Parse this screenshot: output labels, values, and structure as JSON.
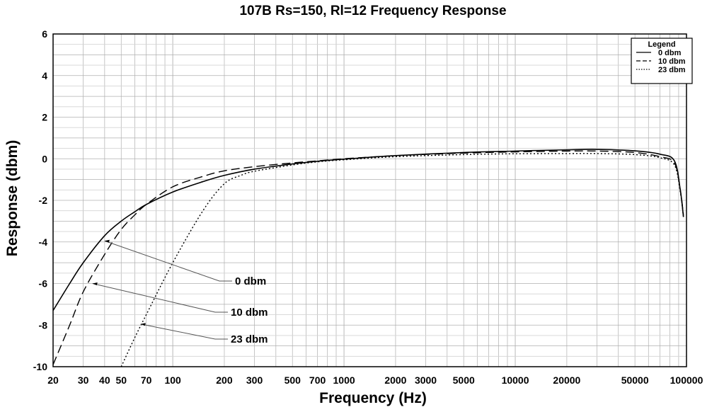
{
  "chart_data": {
    "type": "line",
    "title": "107B Rs=150, Rl=12 Frequency Response",
    "xlabel": "Frequency (Hz)",
    "ylabel": "Response (dbm)",
    "xscale": "log",
    "xlim": [
      20,
      100000
    ],
    "ylim": [
      -10,
      6
    ],
    "grid": true,
    "x_ticks": [
      20,
      30,
      40,
      50,
      70,
      100,
      200,
      300,
      500,
      700,
      1000,
      2000,
      3000,
      5000,
      10000,
      20000,
      50000,
      100000
    ],
    "x_tick_labels": [
      "20",
      "30",
      "40",
      "50",
      "70",
      "100",
      "200",
      "300",
      "500",
      "700",
      "1000",
      "2000",
      "3000",
      "5000",
      "10000",
      "20000",
      "50000",
      "100000"
    ],
    "y_ticks": [
      6,
      4,
      2,
      0,
      -2,
      -4,
      -6,
      -8,
      -10
    ],
    "y_tick_labels": [
      "6",
      "4",
      "2",
      "0",
      "-2",
      "-4",
      "-6",
      "-8",
      "-10"
    ],
    "legend": {
      "title": "Legend",
      "position": "top-right",
      "entries": [
        "0 dbm",
        "10 dbm",
        "23 dbm"
      ]
    },
    "series": [
      {
        "name": "0 dbm",
        "style": "solid",
        "x": [
          20,
          25,
          30,
          40,
          50,
          60,
          70,
          100,
          150,
          200,
          300,
          500,
          700,
          1000,
          2000,
          5000,
          10000,
          20000,
          30000,
          50000,
          70000,
          85000,
          92000,
          96000
        ],
        "y": [
          -7.3,
          -6.0,
          -5.0,
          -3.7,
          -3.0,
          -2.55,
          -2.2,
          -1.6,
          -1.1,
          -0.8,
          -0.5,
          -0.25,
          -0.12,
          -0.02,
          0.15,
          0.3,
          0.37,
          0.43,
          0.45,
          0.38,
          0.22,
          -0.1,
          -1.5,
          -2.8
        ]
      },
      {
        "name": "10 dbm",
        "style": "dashed",
        "x": [
          20,
          25,
          30,
          40,
          50,
          60,
          70,
          100,
          150,
          200,
          300,
          500,
          700,
          1000,
          2000,
          5000,
          10000,
          20000,
          30000,
          50000,
          70000,
          85000,
          92000,
          96000
        ],
        "y": [
          -9.9,
          -8.0,
          -6.4,
          -4.6,
          -3.4,
          -2.7,
          -2.2,
          -1.35,
          -0.85,
          -0.58,
          -0.38,
          -0.2,
          -0.1,
          0.0,
          0.15,
          0.27,
          0.33,
          0.37,
          0.37,
          0.3,
          0.1,
          -0.2,
          -1.5,
          -2.7
        ]
      },
      {
        "name": "23 dbm",
        "style": "dotted",
        "x": [
          50,
          60,
          70,
          100,
          150,
          200,
          250,
          300,
          500,
          700,
          1000,
          2000,
          5000,
          10000,
          20000,
          30000,
          50000,
          70000,
          85000,
          92000,
          96000
        ],
        "y": [
          -10.0,
          -8.6,
          -7.5,
          -5.0,
          -2.5,
          -1.2,
          -0.8,
          -0.6,
          -0.3,
          -0.15,
          -0.05,
          0.1,
          0.2,
          0.24,
          0.25,
          0.25,
          0.2,
          0.05,
          -0.3,
          -1.6,
          -2.8
        ]
      }
    ],
    "annotations": [
      {
        "text": "0 dbm",
        "series": "0 dbm",
        "point": [
          40,
          -3.95
        ]
      },
      {
        "text": "10 dbm",
        "series": "10 dbm",
        "point": [
          34,
          -6.0
        ]
      },
      {
        "text": "23 dbm",
        "series": "23 dbm",
        "point": [
          65,
          -7.95
        ]
      }
    ]
  }
}
